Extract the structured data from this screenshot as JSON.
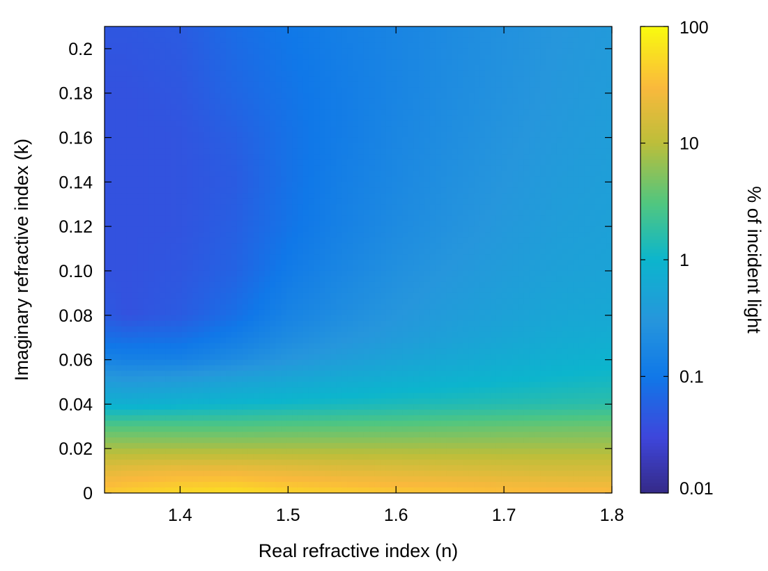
{
  "chart_data": {
    "type": "heatmap",
    "title": "",
    "xlabel": "Real refractive index (n)",
    "ylabel": "Imaginary refractive index (k)",
    "xlim": [
      1.33,
      1.8
    ],
    "ylim": [
      0,
      0.21
    ],
    "xticks": [
      1.4,
      1.5,
      1.6,
      1.7,
      1.8
    ],
    "xtick_labels": [
      "1.4",
      "1.5",
      "1.6",
      "1.7",
      "1.8"
    ],
    "yticks": [
      0,
      0.02,
      0.04,
      0.06,
      0.08,
      0.1,
      0.12,
      0.14,
      0.16,
      0.18,
      0.2
    ],
    "ytick_labels": [
      "0",
      "0.02",
      "0.04",
      "0.06",
      "0.08",
      "0.10",
      "0.12",
      "0.14",
      "0.16",
      "0.18",
      "0.2"
    ],
    "colorbar": {
      "label": "% of incident light",
      "scale": "log",
      "range": [
        0.01,
        100
      ],
      "ticks": [
        0.01,
        0.1,
        1,
        10,
        100
      ],
      "tick_labels": [
        "0.01",
        "0.1",
        "1",
        "10",
        "100"
      ],
      "colormap": "parula"
    },
    "x": [
      1.33,
      1.35,
      1.4,
      1.45,
      1.5,
      1.55,
      1.6,
      1.65,
      1.7,
      1.75,
      1.8
    ],
    "y": [
      0,
      0.01,
      0.02,
      0.03,
      0.04,
      0.05,
      0.06,
      0.07,
      0.08,
      0.1,
      0.12,
      0.14,
      0.16,
      0.18,
      0.21
    ],
    "z": [
      [
        40,
        45,
        55,
        60,
        50,
        45,
        40,
        38,
        35,
        33,
        32
      ],
      [
        20,
        22,
        25,
        25,
        22,
        20,
        19,
        18,
        17,
        16,
        16
      ],
      [
        8,
        8,
        8,
        8,
        8,
        8,
        8,
        8,
        8,
        8,
        8
      ],
      [
        3,
        3,
        3,
        3,
        3.2,
        3.3,
        3.4,
        3.6,
        3.8,
        4,
        4.2
      ],
      [
        0.8,
        0.8,
        0.9,
        1,
        1.1,
        1.2,
        1.3,
        1.4,
        1.5,
        1.6,
        1.7
      ],
      [
        0.4,
        0.35,
        0.4,
        0.5,
        0.6,
        0.7,
        0.8,
        0.9,
        1,
        1.1,
        1.2
      ],
      [
        0.15,
        0.14,
        0.14,
        0.2,
        0.3,
        0.4,
        0.5,
        0.6,
        0.7,
        0.8,
        0.9
      ],
      [
        0.08,
        0.075,
        0.08,
        0.12,
        0.2,
        0.28,
        0.36,
        0.45,
        0.55,
        0.65,
        0.72
      ],
      [
        0.05,
        0.04,
        0.05,
        0.08,
        0.15,
        0.22,
        0.3,
        0.38,
        0.46,
        0.55,
        0.6
      ],
      [
        0.04,
        0.04,
        0.045,
        0.06,
        0.11,
        0.17,
        0.24,
        0.31,
        0.38,
        0.45,
        0.5
      ],
      [
        0.04,
        0.04,
        0.042,
        0.055,
        0.09,
        0.14,
        0.2,
        0.26,
        0.33,
        0.4,
        0.45
      ],
      [
        0.04,
        0.04,
        0.042,
        0.05,
        0.085,
        0.13,
        0.18,
        0.24,
        0.3,
        0.37,
        0.42
      ],
      [
        0.04,
        0.04,
        0.042,
        0.055,
        0.085,
        0.12,
        0.17,
        0.22,
        0.28,
        0.34,
        0.4
      ],
      [
        0.04,
        0.04,
        0.045,
        0.065,
        0.09,
        0.12,
        0.16,
        0.21,
        0.26,
        0.32,
        0.38
      ],
      [
        0.045,
        0.045,
        0.05,
        0.075,
        0.1,
        0.13,
        0.16,
        0.2,
        0.25,
        0.3,
        0.35
      ]
    ],
    "grid": false
  }
}
